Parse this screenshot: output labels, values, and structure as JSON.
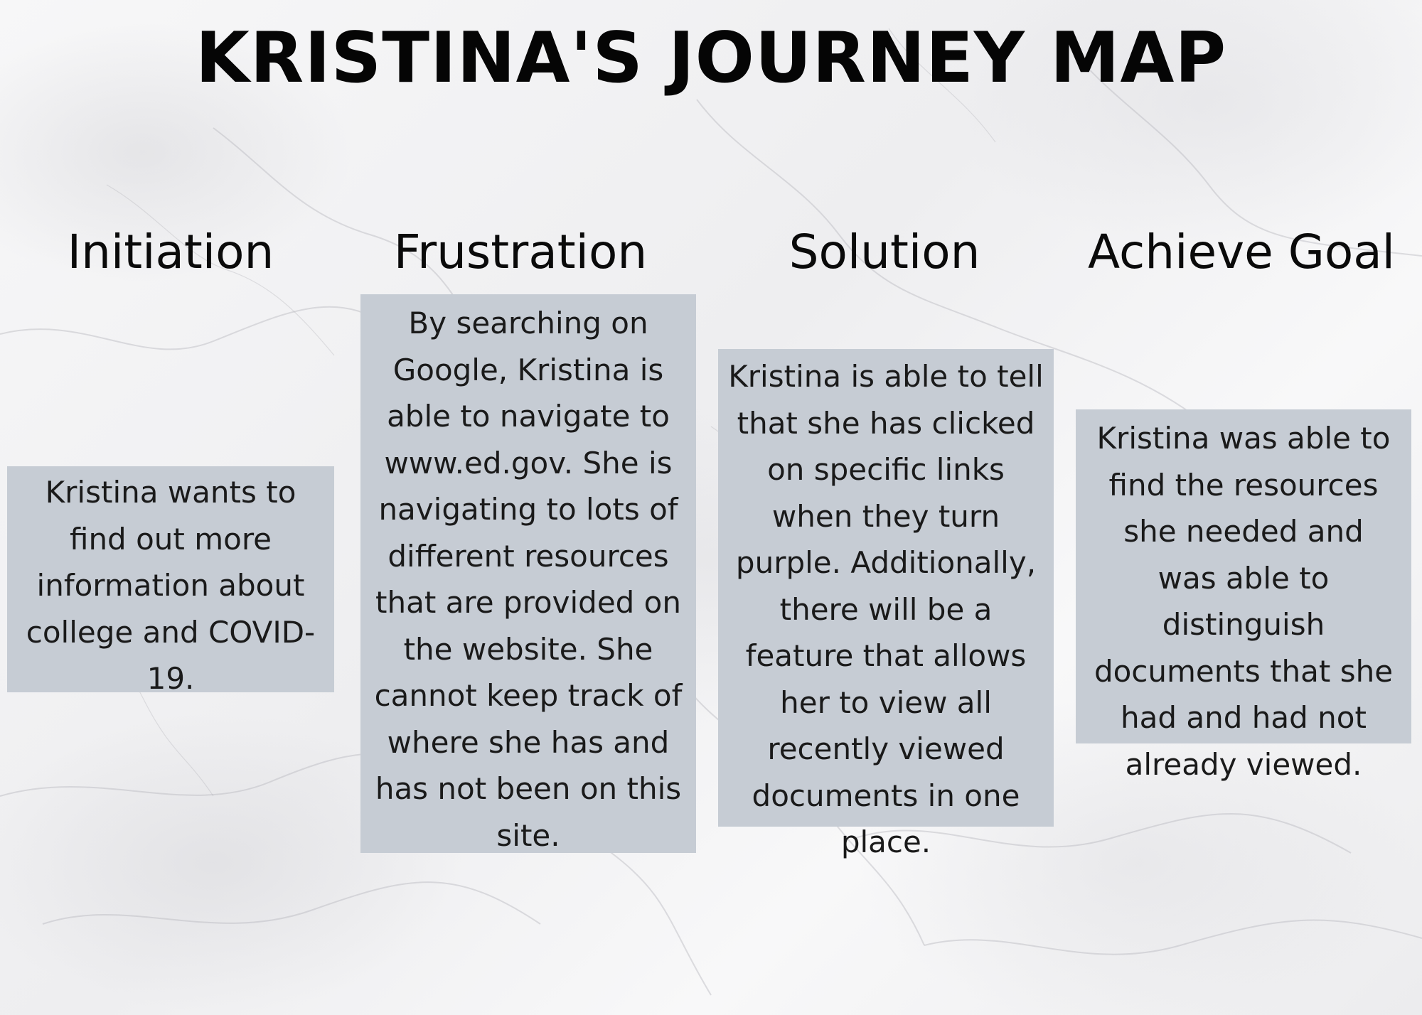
{
  "title": "KRISTINA'S JOURNEY MAP",
  "stages": [
    {
      "heading": "Initiation",
      "text": "Kristina wants to find out more information about college and COVID-19."
    },
    {
      "heading": "Frustration",
      "text": "By searching on Google, Kristina is able to navigate to www.ed.gov. She is navigating to lots of different resources that are provided on the website. She cannot keep track of where she has and has not been on this site."
    },
    {
      "heading": "Solution",
      "text": "Kristina is able to tell that she has clicked on specific links when they turn purple. Additionally, there will be a feature that allows her to view all recently viewed documents in one place."
    },
    {
      "heading": "Achieve Goal",
      "text": "Kristina was able to find the resources she needed and was able to distinguish documents that she had and had not already viewed."
    }
  ],
  "colors": {
    "card_background": "#c6ccd4",
    "text": "#111111"
  }
}
